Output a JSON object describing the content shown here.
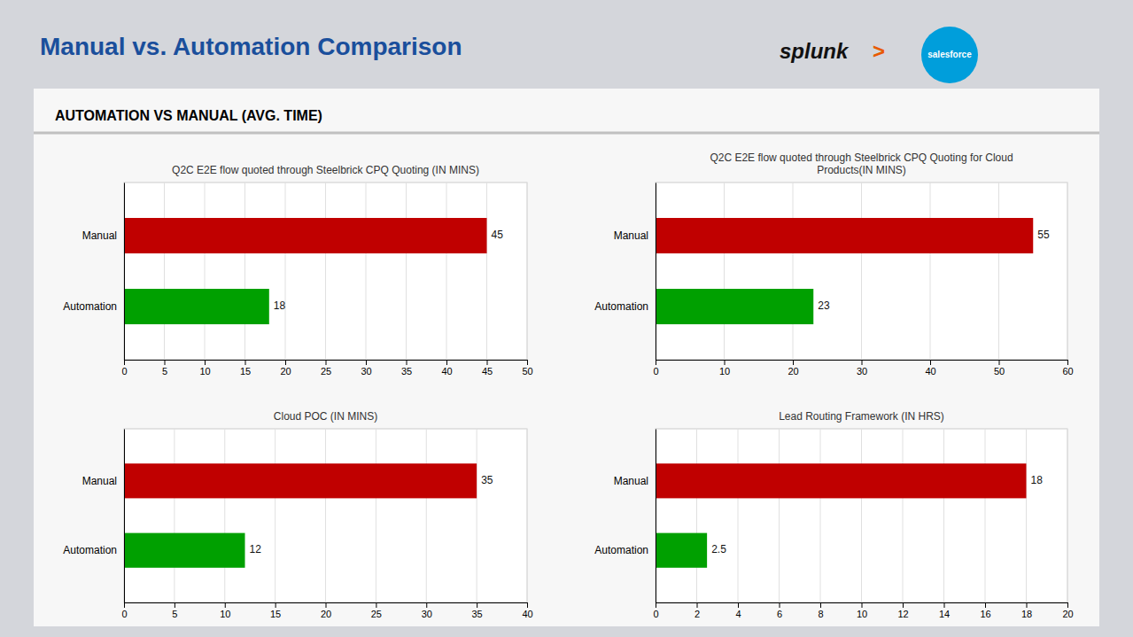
{
  "title": "Manual vs. Automation Comparison",
  "subtitle": "AUTOMATION VS MANUAL (AVG. TIME)",
  "annotations": [
    "splunk",
    ">",
    "salesforce"
  ],
  "chart_data": [
    {
      "type": "bar",
      "orientation": "horizontal",
      "title": "Q2C E2E flow quoted through Steelbrick CPQ Quoting  (IN MINS)",
      "categories": [
        "Manual",
        "Automation"
      ],
      "values": [
        45,
        18
      ],
      "colors": [
        "#c00000",
        "#00a000"
      ],
      "xlim": [
        0,
        50
      ],
      "xticks": [
        0,
        5,
        10,
        15,
        20,
        25,
        30,
        35,
        40,
        45,
        50
      ],
      "grid": true,
      "data_labels": true
    },
    {
      "type": "bar",
      "orientation": "horizontal",
      "title": "Q2C E2E flow quoted through Steelbrick CPQ Quoting for Cloud\nProducts(IN MINS)",
      "categories": [
        "Manual",
        "Automation"
      ],
      "values": [
        55,
        23
      ],
      "colors": [
        "#c00000",
        "#00a000"
      ],
      "xlim": [
        0,
        60
      ],
      "xticks": [
        0,
        10,
        20,
        30,
        40,
        50,
        60
      ],
      "grid": true,
      "data_labels": true
    },
    {
      "type": "bar",
      "orientation": "horizontal",
      "title": "Cloud POC (IN MINS)",
      "categories": [
        "Manual",
        "Automation"
      ],
      "values": [
        35,
        12
      ],
      "colors": [
        "#c00000",
        "#00a000"
      ],
      "xlim": [
        0,
        40
      ],
      "xticks": [
        0,
        5,
        10,
        15,
        20,
        25,
        30,
        35,
        40
      ],
      "grid": true,
      "data_labels": true
    },
    {
      "type": "bar",
      "orientation": "horizontal",
      "title": "Lead Routing Framework (IN HRS)",
      "categories": [
        "Manual",
        "Automation"
      ],
      "values": [
        18,
        2.5
      ],
      "colors": [
        "#c00000",
        "#00a000"
      ],
      "xlim": [
        0,
        20
      ],
      "xticks": [
        0,
        2,
        4,
        6,
        8,
        10,
        12,
        14,
        16,
        18,
        20
      ],
      "grid": true,
      "data_labels": true
    }
  ]
}
